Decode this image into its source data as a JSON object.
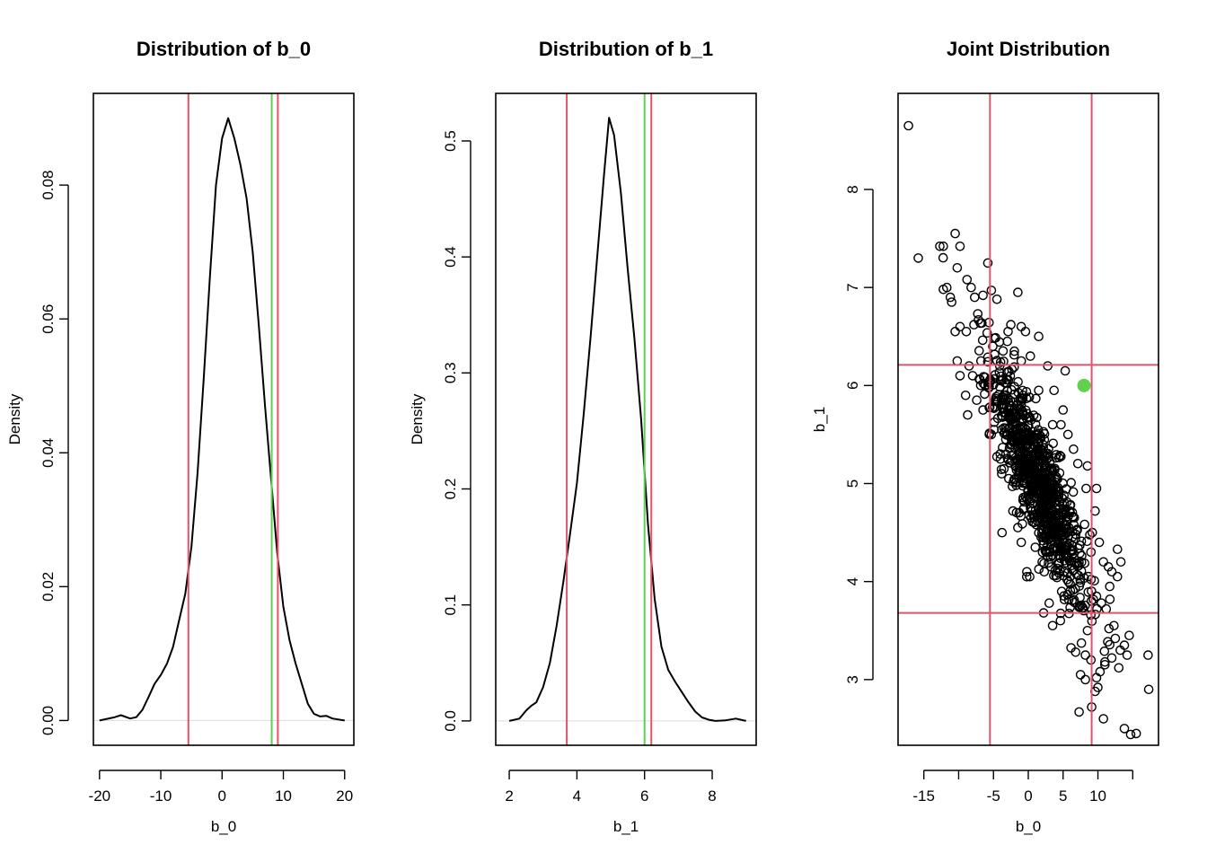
{
  "chart_data": [
    {
      "type": "line",
      "title": "Distribution of b_0",
      "xlabel": "b_0",
      "ylabel": "Density",
      "xlim": [
        -21,
        21.5
      ],
      "ylim": [
        -0.0037,
        0.0937
      ],
      "xticks": [
        -20,
        -10,
        0,
        10,
        20
      ],
      "xtick_labels": [
        "-20",
        "-10",
        "0",
        "10",
        "20"
      ],
      "yticks": [
        0,
        0.02,
        0.04,
        0.06,
        0.08
      ],
      "ytick_labels": [
        "0.00",
        "0.02",
        "0.04",
        "0.06",
        "0.08"
      ],
      "series": [
        {
          "name": "density",
          "color": "#000000",
          "x": [
            -20,
            -17.5,
            -16.5,
            -15,
            -14,
            -13,
            -12,
            -11,
            -10,
            -9,
            -8,
            -7,
            -6,
            -5,
            -4,
            -3,
            -2,
            -1,
            0,
            1,
            2,
            3,
            4,
            5,
            6,
            7,
            8,
            9,
            10,
            11,
            12,
            13,
            14,
            15,
            16,
            17,
            18,
            20
          ],
          "y": [
            0,
            0.0005,
            0.0008,
            0.0003,
            0.0005,
            0.0016,
            0.0035,
            0.0055,
            0.0068,
            0.0085,
            0.011,
            0.015,
            0.019,
            0.026,
            0.037,
            0.051,
            0.066,
            0.08,
            0.087,
            0.09,
            0.087,
            0.083,
            0.078,
            0.07,
            0.059,
            0.047,
            0.036,
            0.025,
            0.017,
            0.012,
            0.0085,
            0.0055,
            0.0025,
            0.001,
            0.0006,
            0.0007,
            0.0003,
            0
          ]
        }
      ],
      "vlines": [
        {
          "x": -5.5,
          "color": "#DF536B",
          "name": "lower-interval"
        },
        {
          "x": 8.1,
          "color": "#61D04F",
          "name": "observed"
        },
        {
          "x": 9.1,
          "color": "#DF536B",
          "name": "upper-interval"
        }
      ],
      "hlines": [
        {
          "y": 0,
          "color": "#dddddd"
        }
      ]
    },
    {
      "type": "line",
      "title": "Distribution of b_1",
      "xlabel": "b_1",
      "ylabel": "Density",
      "xlim": [
        1.6,
        9.3
      ],
      "ylim": [
        -0.021,
        0.541
      ],
      "xticks": [
        2,
        4,
        6,
        8
      ],
      "xtick_labels": [
        "2",
        "4",
        "6",
        "8"
      ],
      "yticks": [
        0,
        0.1,
        0.2,
        0.3,
        0.4,
        0.5
      ],
      "ytick_labels": [
        "0.0",
        "0.1",
        "0.2",
        "0.3",
        "0.4",
        "0.5"
      ],
      "series": [
        {
          "name": "density",
          "color": "#000000",
          "x": [
            2.0,
            2.3,
            2.5,
            2.65,
            2.8,
            3.0,
            3.2,
            3.4,
            3.6,
            3.8,
            4.0,
            4.2,
            4.4,
            4.6,
            4.8,
            4.95,
            5.1,
            5.3,
            5.5,
            5.7,
            5.9,
            6.1,
            6.3,
            6.5,
            6.7,
            6.9,
            7.1,
            7.3,
            7.5,
            7.7,
            7.9,
            8.1,
            8.4,
            8.7,
            9.0
          ],
          "y": [
            0,
            0.002,
            0.009,
            0.013,
            0.016,
            0.029,
            0.05,
            0.082,
            0.12,
            0.162,
            0.205,
            0.264,
            0.33,
            0.4,
            0.47,
            0.52,
            0.505,
            0.455,
            0.39,
            0.33,
            0.26,
            0.17,
            0.105,
            0.064,
            0.044,
            0.034,
            0.025,
            0.016,
            0.008,
            0.003,
            0.001,
            0,
            0.0005,
            0.002,
            0
          ]
        }
      ],
      "vlines": [
        {
          "x": 3.7,
          "color": "#DF536B",
          "name": "lower-interval"
        },
        {
          "x": 6.0,
          "color": "#61D04F",
          "name": "observed"
        },
        {
          "x": 6.2,
          "color": "#DF536B",
          "name": "upper-interval"
        }
      ],
      "hlines": [
        {
          "y": 0,
          "color": "#dddddd"
        }
      ]
    },
    {
      "type": "scatter",
      "title": "Joint Distribution",
      "xlabel": "b_0",
      "ylabel": "b_1",
      "xlim": [
        -18.7,
        18.7
      ],
      "ylim": [
        2.33,
        8.98
      ],
      "xticks": [
        -15,
        -10,
        -5,
        0,
        5,
        10,
        15
      ],
      "xtick_labels": [
        "-15",
        "",
        "-5",
        "0",
        "5",
        "10",
        ""
      ],
      "yticks": [
        3,
        4,
        5,
        6,
        7,
        8
      ],
      "ytick_labels": [
        "3",
        "4",
        "5",
        "6",
        "7",
        "8"
      ],
      "points_color": "#000000",
      "points": [
        [
          -17.2,
          8.65
        ],
        [
          -15.8,
          7.3
        ],
        [
          -12.7,
          7.42
        ],
        [
          -12.2,
          7.42
        ],
        [
          -10.5,
          7.55
        ],
        [
          -9.8,
          7.42
        ],
        [
          -12.2,
          6.98
        ],
        [
          -11.7,
          7.0
        ],
        [
          -11.2,
          6.9
        ],
        [
          -10.2,
          7.2
        ],
        [
          -8.8,
          7.08
        ],
        [
          -8.2,
          7.0
        ],
        [
          -7.7,
          6.9
        ],
        [
          -6.5,
          6.92
        ],
        [
          -5.8,
          7.25
        ],
        [
          -5.3,
          6.97
        ],
        [
          -5.1,
          6.4
        ],
        [
          -4.5,
          6.88
        ],
        [
          -1.5,
          6.95
        ],
        [
          -0.4,
          6.55
        ],
        [
          1.5,
          6.5
        ],
        [
          -10.5,
          6.55
        ],
        [
          -9.8,
          6.6
        ],
        [
          -11.0,
          6.85
        ],
        [
          -8.9,
          6.55
        ],
        [
          -7.8,
          6.62
        ],
        [
          -2.5,
          6.62
        ],
        [
          0.3,
          6.3
        ],
        [
          -10.2,
          6.25
        ],
        [
          -9.8,
          6.1
        ],
        [
          -9.0,
          5.9
        ],
        [
          -8.5,
          6.2
        ],
        [
          -8.0,
          6.1
        ],
        [
          -7.4,
          5.85
        ],
        [
          -6.8,
          6.25
        ],
        [
          -6.2,
          6.0
        ],
        [
          -1.0,
          6.6
        ],
        [
          -2.9,
          6.55
        ],
        [
          2.8,
          6.2
        ],
        [
          -8.7,
          5.7
        ],
        [
          -4.9,
          5.55
        ],
        [
          -5.3,
          5.5
        ],
        [
          -6.5,
          5.75
        ],
        [
          5.3,
          6.15
        ],
        [
          3.7,
          5.95
        ],
        [
          5.0,
          5.75
        ],
        [
          4.7,
          5.6
        ],
        [
          5.7,
          5.5
        ],
        [
          6.5,
          5.35
        ],
        [
          3.5,
          5.6
        ],
        [
          -4.1,
          6.2
        ],
        [
          -3.0,
          6.45
        ],
        [
          -2.0,
          6.35
        ],
        [
          -1.0,
          6.25
        ],
        [
          1.5,
          5.95
        ],
        [
          -2.8,
          5.05
        ],
        [
          -1.8,
          5.18
        ],
        [
          -3.5,
          5.15
        ],
        [
          -2.2,
          4.72
        ],
        [
          -1.5,
          4.55
        ],
        [
          -1.0,
          4.4
        ],
        [
          -0.2,
          4.1
        ],
        [
          0.2,
          4.05
        ],
        [
          1.0,
          4.35
        ],
        [
          2.3,
          4.1
        ],
        [
          8.5,
          5.18
        ],
        [
          9.8,
          4.95
        ],
        [
          8.3,
          4.95
        ],
        [
          9.6,
          4.72
        ],
        [
          9.2,
          4.5
        ],
        [
          9.0,
          4.3
        ],
        [
          10.2,
          4.4
        ],
        [
          10.8,
          4.2
        ],
        [
          11.5,
          4.15
        ],
        [
          12.0,
          4.1
        ],
        [
          13.3,
          4.2
        ],
        [
          12.8,
          4.05
        ],
        [
          11.7,
          3.95
        ],
        [
          12.8,
          4.33
        ],
        [
          9.8,
          3.85
        ],
        [
          10.5,
          3.78
        ],
        [
          11.2,
          3.72
        ],
        [
          12.3,
          3.55
        ],
        [
          11.6,
          3.52
        ],
        [
          12.5,
          3.42
        ],
        [
          13.2,
          3.3
        ],
        [
          13.8,
          3.35
        ],
        [
          14.5,
          3.45
        ],
        [
          14.2,
          3.25
        ],
        [
          13.0,
          3.12
        ],
        [
          12.0,
          3.22
        ],
        [
          11.0,
          3.18
        ],
        [
          10.3,
          3.08
        ],
        [
          9.8,
          3.02
        ],
        [
          10.0,
          2.92
        ],
        [
          9.6,
          2.88
        ],
        [
          9.1,
          2.72
        ],
        [
          7.3,
          2.67
        ],
        [
          10.8,
          2.6
        ],
        [
          13.8,
          2.5
        ],
        [
          15.5,
          2.45
        ],
        [
          14.7,
          2.44
        ],
        [
          17.2,
          3.25
        ],
        [
          17.3,
          2.9
        ],
        [
          8.5,
          3.5
        ],
        [
          9.0,
          3.2
        ],
        [
          8.2,
          3.25
        ],
        [
          6.8,
          3.28
        ],
        [
          7.5,
          3.05
        ],
        [
          8.2,
          3.0
        ],
        [
          3.5,
          3.55
        ],
        [
          2.2,
          3.68
        ],
        [
          3.0,
          3.78
        ],
        [
          -3.4,
          6.03
        ],
        [
          -3.8,
          5.55
        ],
        [
          -3.9,
          5.8
        ],
        [
          -4.0,
          5.25
        ],
        [
          -3.2,
          5.3
        ],
        [
          2.0,
          4.2
        ],
        [
          -0.6,
          4.75
        ]
      ],
      "cloud": [
        {
          "cx": 1.5,
          "cy": 5.0,
          "sx": 3.4,
          "sy": 0.62,
          "rho": -0.86,
          "n": 900,
          "seed": 12345
        }
      ],
      "highlight_point": {
        "x": 8.0,
        "y": 6.0,
        "color": "#61D04F",
        "name": "observed"
      },
      "vlines": [
        {
          "x": -5.5,
          "color": "#DF536B"
        },
        {
          "x": 9.1,
          "color": "#DF536B"
        }
      ],
      "hlines": [
        {
          "y": 3.68,
          "color": "#DF536B"
        },
        {
          "y": 6.21,
          "color": "#DF536B"
        }
      ]
    }
  ]
}
